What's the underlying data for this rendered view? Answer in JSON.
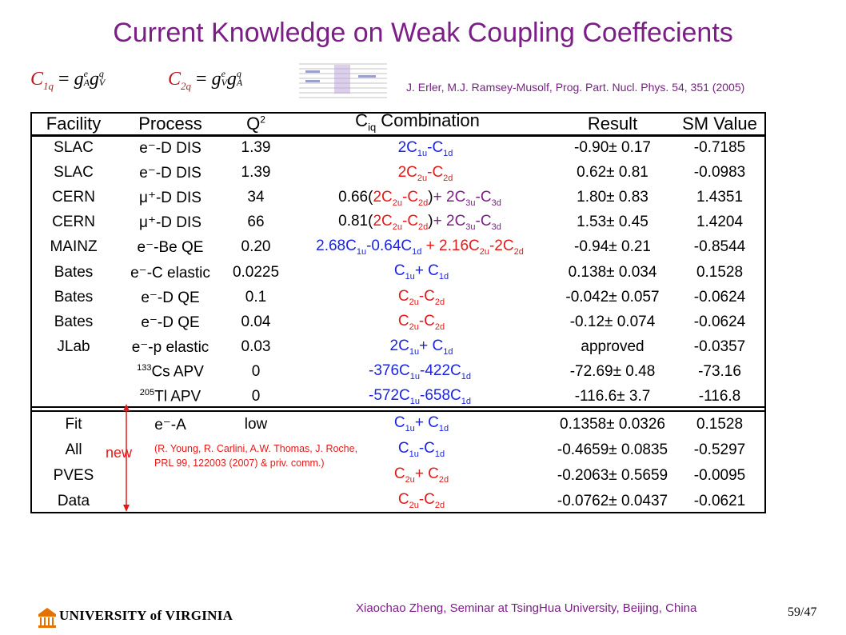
{
  "title": "Current Knowledge on Weak Coupling Coeffecients",
  "reference": "J. Erler, M.J. Ramsey-Musolf, Prog. Part. Nucl. Phys. 54, 351 (2005)",
  "headers": {
    "facility": "Facility",
    "process": "Process",
    "q2": "Q2",
    "combination": "Ciq Combination",
    "result": "Result",
    "sm": "SM Value"
  },
  "rows": [
    {
      "facility": "SLAC",
      "process": "e⁻-D DIS",
      "q2": "1.39",
      "result": "-0.90±  0.17",
      "sm": "-0.7185"
    },
    {
      "facility": "SLAC",
      "process": "e⁻-D DIS",
      "q2": "1.39",
      "result": "0.62±  0.81",
      "sm": "-0.0983"
    },
    {
      "facility": "CERN",
      "process": "μ⁺-D DIS",
      "q2": "34",
      "result": "1.80±  0.83",
      "sm": "1.4351"
    },
    {
      "facility": "CERN",
      "process": "μ⁺-D DIS",
      "q2": "66",
      "result": "1.53±  0.45",
      "sm": "1.4204"
    },
    {
      "facility": "MAINZ",
      "process": "e⁻-Be QE",
      "q2": "0.20",
      "result": "-0.94±  0.21",
      "sm": "-0.8544"
    },
    {
      "facility": "Bates",
      "process": "e⁻-C elastic",
      "q2": "0.0225",
      "result": "0.138± 0.034",
      "sm": "0.1528"
    },
    {
      "facility": "Bates",
      "process": "e⁻-D QE",
      "q2": "0.1",
      "result": "-0.042±  0.057",
      "sm": "-0.0624"
    },
    {
      "facility": "Bates",
      "process": "e⁻-D QE",
      "q2": "0.04",
      "result": "-0.12±  0.074",
      "sm": "-0.0624"
    },
    {
      "facility": "JLab",
      "process": "e⁻-p elastic",
      "q2": "0.03",
      "result": "approved",
      "sm": "-0.0357"
    },
    {
      "facility": "",
      "process": "133Cs APV",
      "q2": "0",
      "result": "-72.69± 0.48",
      "sm": "-73.16"
    },
    {
      "facility": "",
      "process": "205Tl APV",
      "q2": "0",
      "result": "-116.6±  3.7",
      "sm": "-116.8"
    }
  ],
  "fits": [
    {
      "facility": "Fit",
      "process": "e⁻-A",
      "q2": "low",
      "result": "0.1358± 0.0326",
      "sm": "0.1528"
    },
    {
      "facility": "All",
      "process": "",
      "q2": "",
      "result": "-0.4659± 0.0835",
      "sm": "-0.5297"
    },
    {
      "facility": "PVES",
      "process": "",
      "q2": "",
      "result": "-0.2063± 0.5659",
      "sm": "-0.0095"
    },
    {
      "facility": "Data",
      "process": "",
      "q2": "",
      "result": "-0.0762± 0.0437",
      "sm": "-0.0621"
    }
  ],
  "new_label": "new",
  "note": "(R. Young, R. Carlini, A.W. Thomas, J. Roche, PRL 99, 122003 (2007) & priv. comm.)",
  "footer": "Xiaochao Zheng, Seminar at TsingHua University, Beijing, China",
  "page_number": "59/47",
  "logo_text": "UNIVERSITY of VIRGINIA",
  "colors": {
    "title": "#7b1f86",
    "blue": "#1a23e6",
    "red": "#e41a1a",
    "purple": "#7b1f86"
  }
}
